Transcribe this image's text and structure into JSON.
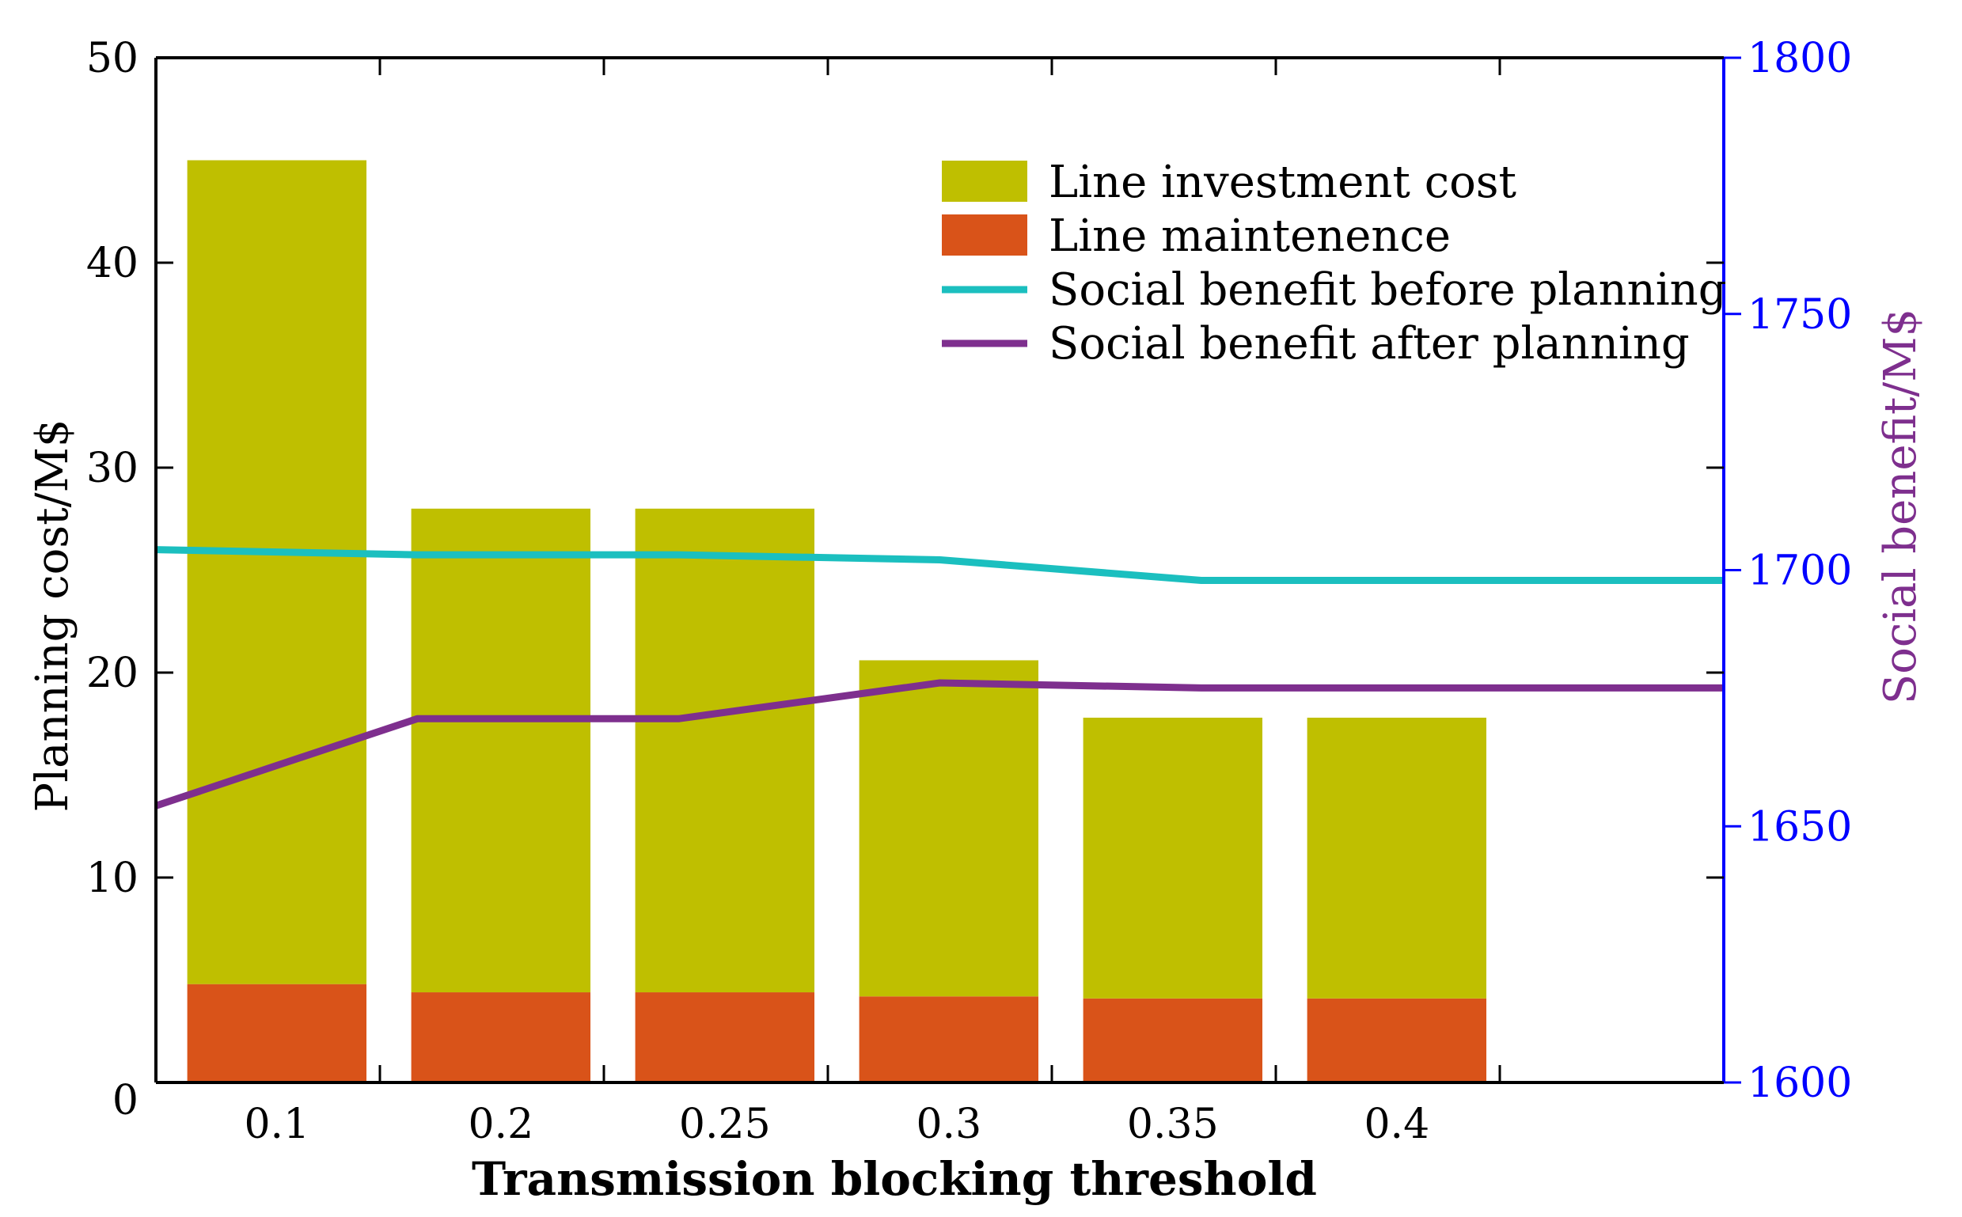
{
  "chart_data": {
    "type": "bar",
    "stacked": true,
    "categories": [
      "0.1",
      "0.2",
      "0.25",
      "0.3",
      "0.35",
      "0.4"
    ],
    "xlabel": "Transmission blocking threshold",
    "ylabel_left": "Planning cost/M$",
    "ylabel_right": "Social benefit/M$",
    "ylim_left": [
      0,
      50
    ],
    "ylim_right": [
      1600,
      1800
    ],
    "yticks_left": [
      "0",
      "10",
      "20",
      "30",
      "40",
      "50"
    ],
    "yticks_right": [
      "1600",
      "1650",
      "1700",
      "1750",
      "1800"
    ],
    "bar_series": [
      {
        "name": "Line maintenence",
        "color": "#D95319",
        "values": [
          4.8,
          4.4,
          4.4,
          4.2,
          4.1,
          4.1
        ]
      },
      {
        "name": "Line investment cost",
        "color": "#BFBF00",
        "values": [
          40.2,
          23.6,
          23.6,
          16.4,
          13.7,
          13.7
        ]
      }
    ],
    "line_series": [
      {
        "name": "Social benefit before planning",
        "color": "#1BBFBF",
        "axis": "right",
        "x": [
          0,
          1,
          2,
          3,
          4,
          5,
          6
        ],
        "values": [
          1704,
          1703,
          1703,
          1702,
          1698,
          1698,
          1698
        ]
      },
      {
        "name": "Social benefit after planning",
        "color": "#7E2F8E",
        "axis": "right",
        "x": [
          0,
          1,
          2,
          3,
          4,
          5,
          6
        ],
        "values": [
          1654,
          1671,
          1671,
          1678,
          1677,
          1677,
          1677
        ]
      }
    ],
    "legend": [
      {
        "label": "Line investment cost",
        "kind": "bar",
        "color": "#BFBF00"
      },
      {
        "label": "Line maintenence",
        "kind": "bar",
        "color": "#D95319"
      },
      {
        "label": "Social benefit before planning",
        "kind": "line",
        "color": "#1BBFBF"
      },
      {
        "label": "Social benefit after planning",
        "kind": "line",
        "color": "#7E2F8E"
      }
    ],
    "legend_position": "top-right",
    "right_axis_color": "#0000FF",
    "right_label_color": "#7E2F8E"
  }
}
